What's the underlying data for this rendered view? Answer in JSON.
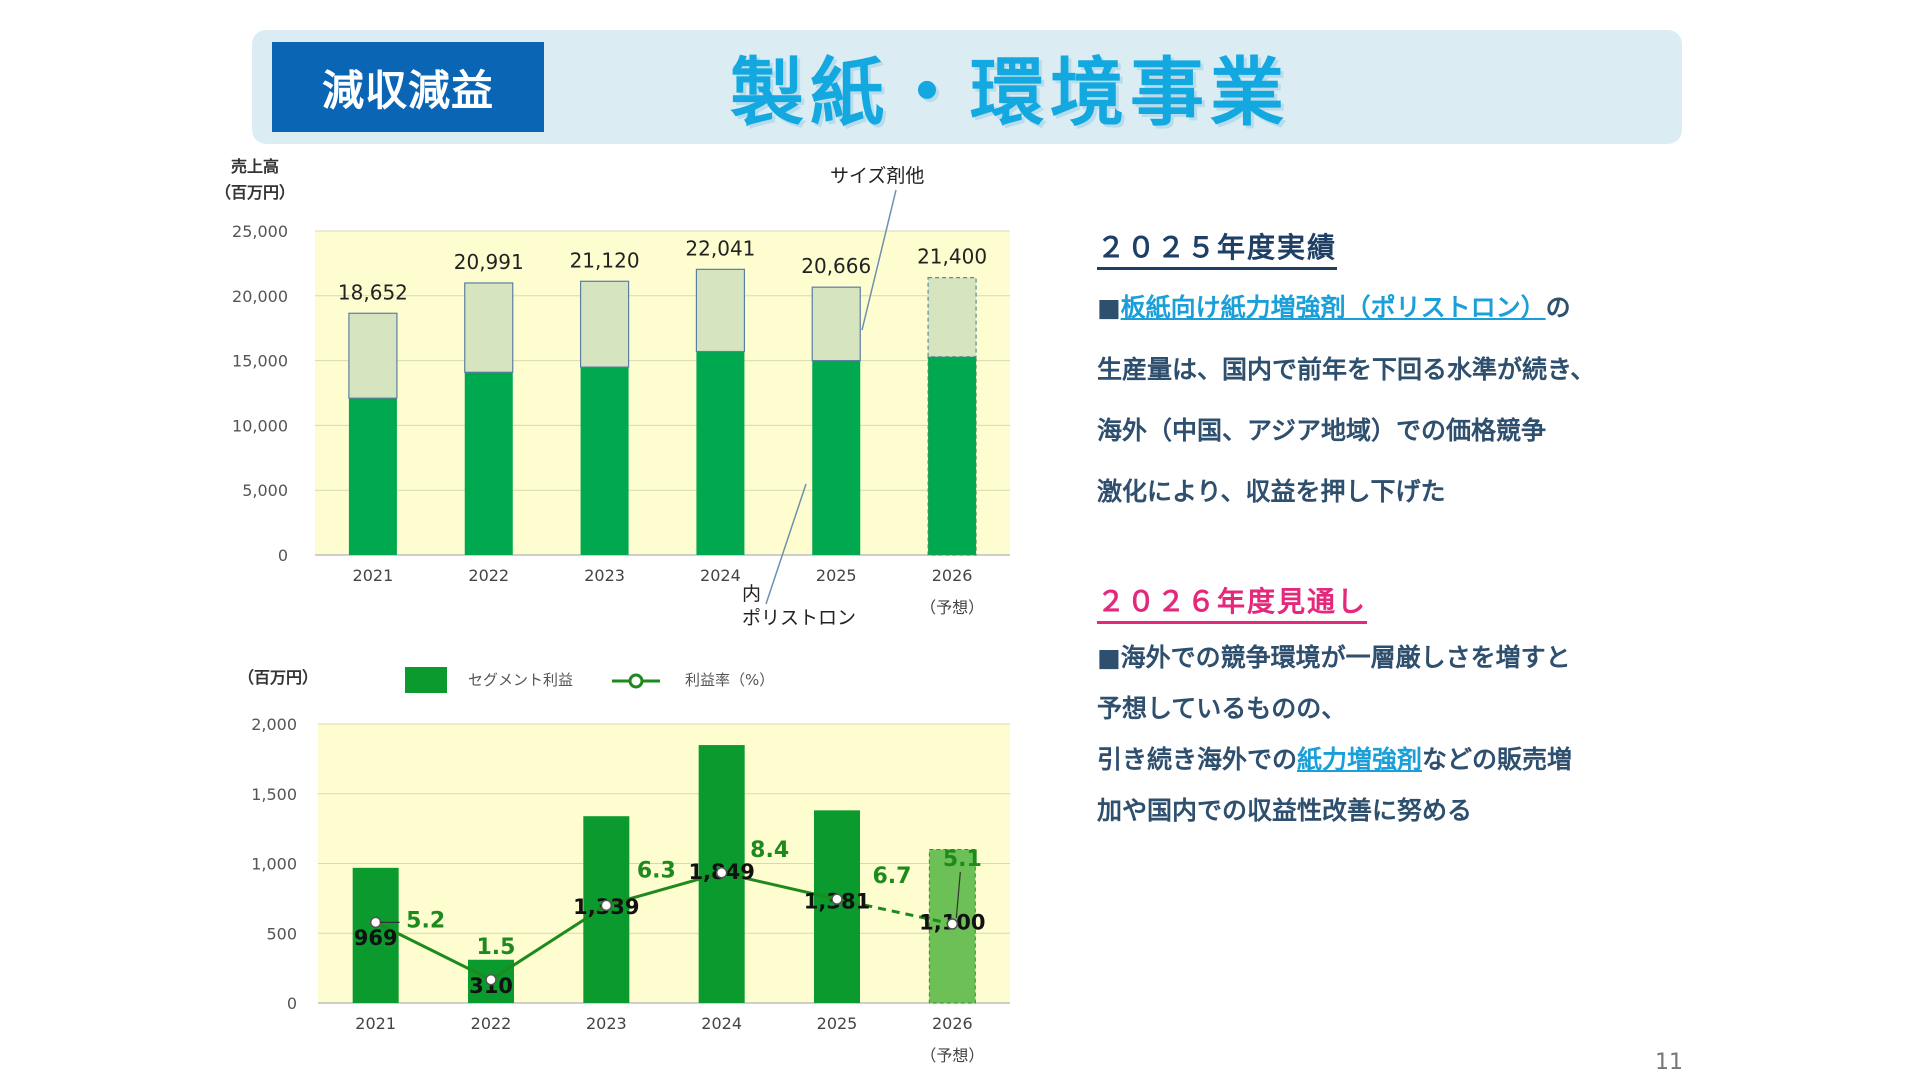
{
  "header": {
    "badge": "減収減益",
    "title": "製紙・環境事業"
  },
  "chart_data": [
    {
      "type": "bar",
      "stacked": true,
      "ylabel_line1": "売上高",
      "ylabel_line2": "（百万円）",
      "categories": [
        "2021",
        "2022",
        "2023",
        "2024",
        "2025",
        "2026"
      ],
      "forecast_label": "（予想）",
      "ylim": [
        0,
        25000
      ],
      "yticks": [
        "25,000",
        "20,000",
        "15,000",
        "10,000",
        "5,000",
        "0"
      ],
      "totals": [
        18652,
        20991,
        21120,
        22041,
        20666,
        21400
      ],
      "total_labels": [
        "18,652",
        "20,991",
        "21,120",
        "22,041",
        "20,666",
        "21,400"
      ],
      "series": [
        {
          "name": "ポリストロン",
          "values": [
            12100,
            14100,
            14500,
            15700,
            15000,
            15300
          ]
        },
        {
          "name": "サイズ剤他",
          "values": [
            6552,
            6891,
            6620,
            6341,
            5666,
            6100
          ]
        }
      ],
      "callouts": {
        "other": "サイズ剤他",
        "inner_line1": "内",
        "inner_line2": "ポリストロン"
      },
      "colors": {
        "bottom": "#00a84f",
        "top": "#d7e4c0",
        "plot_bg": "#fdfdd0"
      }
    },
    {
      "type": "bar",
      "ylabel": "（百万円）",
      "categories": [
        "2021",
        "2022",
        "2023",
        "2024",
        "2025",
        "2026"
      ],
      "forecast_label": "（予想）",
      "ylim": [
        0,
        2000
      ],
      "yticks": [
        "2,000",
        "1,500",
        "1,000",
        "500",
        "0"
      ],
      "legend": {
        "bar": "セグメント利益",
        "line": "利益率（%）"
      },
      "values": [
        969,
        310,
        1339,
        1849,
        1381,
        1100
      ],
      "value_labels": [
        "969",
        "310",
        "1,339",
        "1,849",
        "1,381",
        "1,100"
      ],
      "margin": [
        5.2,
        1.5,
        6.3,
        8.4,
        6.7,
        5.1
      ],
      "margin_labels": [
        "5.2",
        "1.5",
        "6.3",
        "8.4",
        "6.7",
        "5.1"
      ],
      "margin_axis_max": 18,
      "colors": {
        "bar": "#0a9a2e",
        "forecast_bar": "#6cc056",
        "line": "#1e8a1e",
        "plot_bg": "#fdfdd0"
      }
    }
  ],
  "right": {
    "h_actual": "２０２５年度実績",
    "p1_prefix": "■",
    "p1_link": "板紙向け紙力増強剤（ポリストロン）",
    "p1_suffix": "の",
    "p2": "生産量は、国内で前年を下回る水準が続き、",
    "p3": "海外（中国、アジア地域）での価格競争",
    "p4": "激化により、収益を押し下げた",
    "h_forecast": "２０２６年度見通し",
    "q1": "■海外での競争環境が一層厳しさを増すと",
    "q2": "予想しているものの、",
    "q3_prefix": "引き続き海外での",
    "q3_link": "紙力増強剤",
    "q3_suffix": "などの販売増",
    "q4": "加や国内での収益性改善に努める"
  },
  "page_number": "11"
}
